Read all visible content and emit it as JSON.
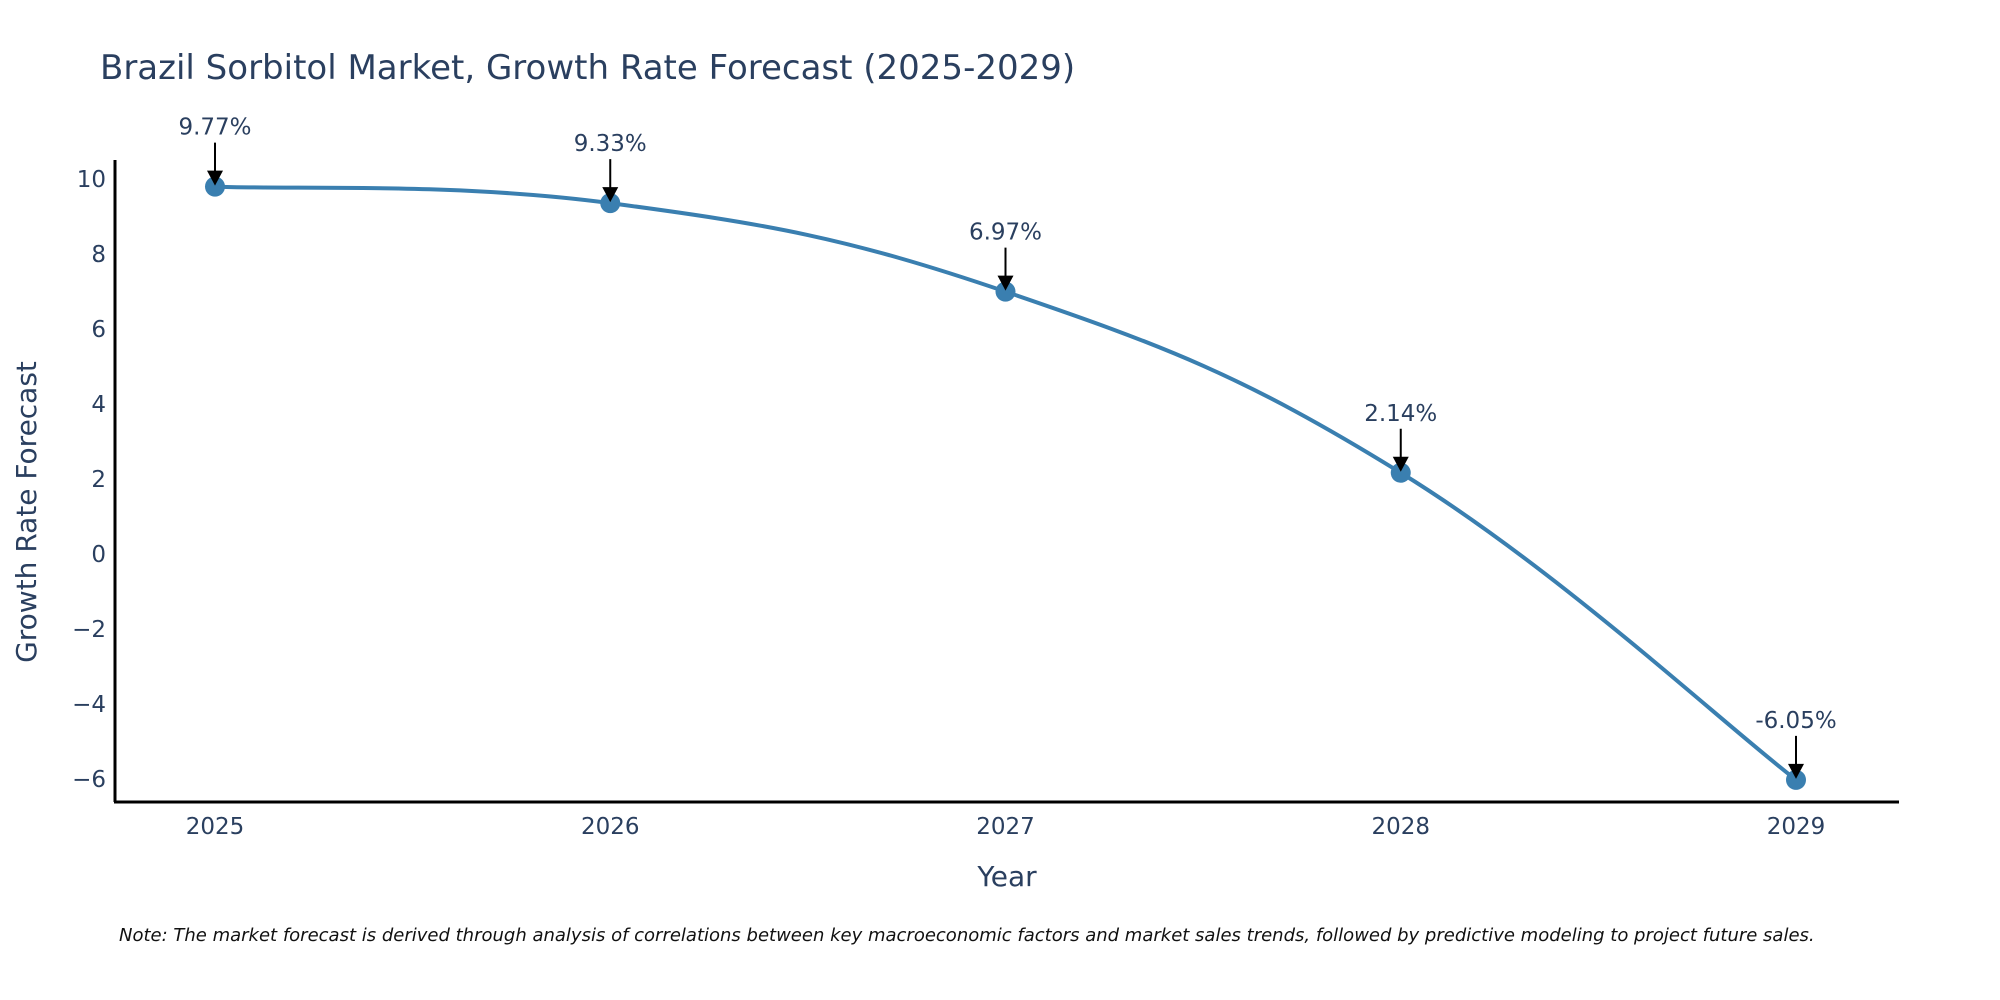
{
  "chart_data": {
    "type": "line",
    "title": "Brazil Sorbitol Market, Growth Rate Forecast (2025-2029)",
    "xlabel": "Year",
    "ylabel": "Growth Rate Forecast",
    "categories": [
      "2025",
      "2026",
      "2027",
      "2028",
      "2029"
    ],
    "series": [
      {
        "name": "Growth Rate Forecast",
        "values": [
          9.77,
          9.33,
          6.97,
          2.14,
          -6.05
        ],
        "labels": [
          "9.77%",
          "9.33%",
          "6.97%",
          "2.14%",
          "-6.05%"
        ]
      }
    ],
    "yticks": [
      10,
      8,
      6,
      4,
      2,
      0,
      -2,
      -4,
      -6
    ],
    "ytick_labels": [
      "10",
      "8",
      "6",
      "4",
      "2",
      "0",
      "−2",
      "−4",
      "−6"
    ],
    "ylim": [
      -6.6,
      10.3
    ],
    "grid": false,
    "legend": false,
    "line_color": "#3a7fb0",
    "annotation_arrow_color": "#000000",
    "note": "Note: The market forecast is derived through analysis of correlations between key macroeconomic factors and market sales trends, followed by predictive modeling to project future sales."
  }
}
